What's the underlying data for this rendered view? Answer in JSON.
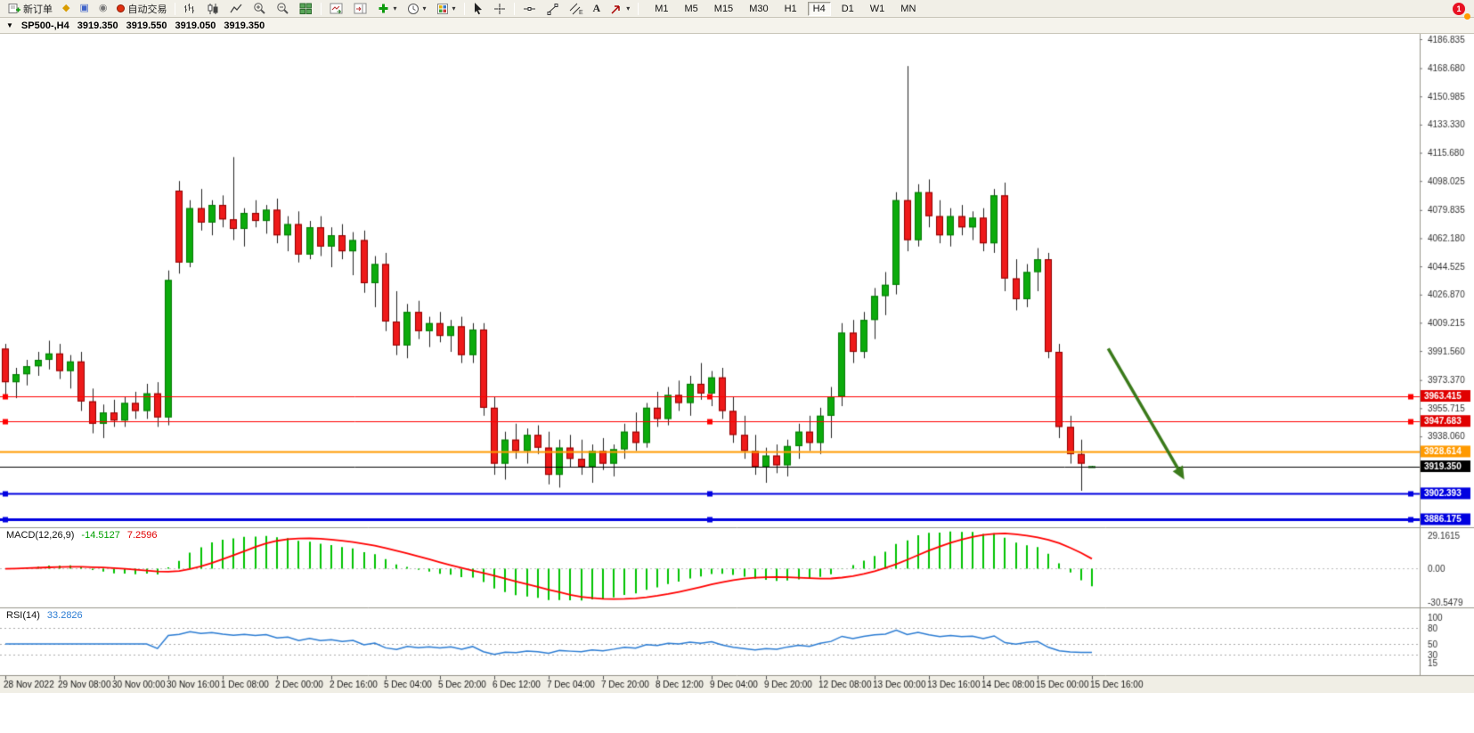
{
  "window": {
    "badge_count": "1"
  },
  "ui": {
    "dropdown_arrow": "▾",
    "symbol_dropdown": "▼",
    "icon_glyphs": {
      "new_chart": "◆",
      "profiles": "▣",
      "alerts": "◉",
      "text_tool": "A"
    }
  },
  "toolbar": {
    "new_order_label": "新订单",
    "auto_trading_label": "自动交易",
    "timeframes": [
      {
        "label": "M1",
        "active": false
      },
      {
        "label": "M5",
        "active": false
      },
      {
        "label": "M15",
        "active": false
      },
      {
        "label": "M30",
        "active": false
      },
      {
        "label": "H1",
        "active": false
      },
      {
        "label": "H4",
        "active": true
      },
      {
        "label": "D1",
        "active": false
      },
      {
        "label": "W1",
        "active": false
      },
      {
        "label": "MN",
        "active": false
      }
    ]
  },
  "quote_bar": {
    "symbol": "SP500-,H4"
  },
  "indicators": {
    "macd": {
      "title": "MACD(12,26,9)",
      "value1": "-14.5127",
      "value2": "7.2596"
    },
    "rsi": {
      "title": "RSI(14)",
      "value": "33.2826"
    }
  },
  "chart_data": {
    "type": "candlestick",
    "symbol": "SP500-",
    "timeframe": "H4",
    "ohlc_current": {
      "open": "3919.350",
      "high": "3919.550",
      "low": "3919.050",
      "close": "3919.350"
    },
    "price_axis_labels": [
      "4186.835",
      "4168.680",
      "4150.985",
      "4133.330",
      "4115.680",
      "4098.025",
      "4079.835",
      "4062.180",
      "4044.525",
      "4026.870",
      "4009.215",
      "3991.560",
      "3973.370",
      "3955.715",
      "3938.060"
    ],
    "time_labels": [
      "28 Nov 2022",
      "29 Nov 08:00",
      "30 Nov 00:00",
      "30 Nov 16:00",
      "1 Dec 08:00",
      "2 Dec 00:00",
      "2 Dec 16:00",
      "5 Dec 04:00",
      "5 Dec 20:00",
      "6 Dec 12:00",
      "7 Dec 04:00",
      "7 Dec 20:00",
      "8 Dec 12:00",
      "9 Dec 04:00",
      "9 Dec 20:00",
      "12 Dec 08:00",
      "13 Dec 00:00",
      "13 Dec 16:00",
      "14 Dec 08:00",
      "15 Dec 00:00",
      "15 Dec 16:00"
    ],
    "label_every": 5,
    "candles": [
      [
        3993,
        3996,
        3964,
        3972
      ],
      [
        3972,
        3981,
        3962,
        3977
      ],
      [
        3977,
        3986,
        3970,
        3982
      ],
      [
        3982,
        3991,
        3976,
        3986
      ],
      [
        3986,
        3998,
        3980,
        3990
      ],
      [
        3990,
        3996,
        3974,
        3979
      ],
      [
        3979,
        3989,
        3968,
        3985
      ],
      [
        3985,
        3991,
        3954,
        3960
      ],
      [
        3960,
        3968,
        3940,
        3946
      ],
      [
        3946,
        3958,
        3937,
        3953
      ],
      [
        3953,
        3961,
        3944,
        3948
      ],
      [
        3948,
        3963,
        3944,
        3959
      ],
      [
        3959,
        3966,
        3949,
        3954
      ],
      [
        3954,
        3971,
        3949,
        3965
      ],
      [
        3965,
        3972,
        3944,
        3950
      ],
      [
        3950,
        4042,
        3945,
        4036
      ],
      [
        4092,
        4098,
        4040,
        4047
      ],
      [
        4047,
        4086,
        4044,
        4081
      ],
      [
        4081,
        4093,
        4067,
        4072
      ],
      [
        4072,
        4086,
        4064,
        4083
      ],
      [
        4083,
        4089,
        4069,
        4074
      ],
      [
        4074,
        4113,
        4061,
        4068
      ],
      [
        4068,
        4081,
        4057,
        4078
      ],
      [
        4078,
        4086,
        4069,
        4073
      ],
      [
        4073,
        4083,
        4065,
        4080
      ],
      [
        4080,
        4087,
        4059,
        4064
      ],
      [
        4064,
        4076,
        4054,
        4071
      ],
      [
        4071,
        4079,
        4047,
        4052
      ],
      [
        4052,
        4073,
        4049,
        4069
      ],
      [
        4069,
        4076,
        4051,
        4057
      ],
      [
        4057,
        4069,
        4044,
        4064
      ],
      [
        4064,
        4071,
        4049,
        4054
      ],
      [
        4054,
        4066,
        4039,
        4061
      ],
      [
        4061,
        4067,
        4028,
        4034
      ],
      [
        4034,
        4051,
        4019,
        4046
      ],
      [
        4046,
        4053,
        4004,
        4010
      ],
      [
        4010,
        4029,
        3989,
        3995
      ],
      [
        3995,
        4021,
        3987,
        4016
      ],
      [
        4016,
        4023,
        3999,
        4004
      ],
      [
        4004,
        4013,
        3994,
        4009
      ],
      [
        4009,
        4016,
        3997,
        4001
      ],
      [
        4001,
        4011,
        3991,
        4007
      ],
      [
        4007,
        4013,
        3984,
        3989
      ],
      [
        3989,
        4009,
        3984,
        4005
      ],
      [
        4005,
        4009,
        3951,
        3956
      ],
      [
        3956,
        3963,
        3914,
        3921
      ],
      [
        3921,
        3941,
        3911,
        3936
      ],
      [
        3936,
        3946,
        3924,
        3929
      ],
      [
        3929,
        3943,
        3921,
        3939
      ],
      [
        3939,
        3945,
        3927,
        3931
      ],
      [
        3931,
        3941,
        3908,
        3914
      ],
      [
        3914,
        3936,
        3906,
        3931
      ],
      [
        3931,
        3939,
        3919,
        3924
      ],
      [
        3924,
        3936,
        3914,
        3919
      ],
      [
        3919,
        3933,
        3909,
        3929
      ],
      [
        3929,
        3937,
        3917,
        3921
      ],
      [
        3921,
        3933,
        3913,
        3930
      ],
      [
        3930,
        3946,
        3924,
        3941
      ],
      [
        3941,
        3953,
        3929,
        3934
      ],
      [
        3934,
        3959,
        3931,
        3956
      ],
      [
        3956,
        3966,
        3944,
        3949
      ],
      [
        3949,
        3969,
        3945,
        3964
      ],
      [
        3964,
        3973,
        3954,
        3959
      ],
      [
        3959,
        3976,
        3951,
        3971
      ],
      [
        3971,
        3984,
        3961,
        3965
      ],
      [
        3965,
        3979,
        3957,
        3975
      ],
      [
        3975,
        3981,
        3949,
        3954
      ],
      [
        3954,
        3963,
        3934,
        3939
      ],
      [
        3939,
        3951,
        3924,
        3929
      ],
      [
        3929,
        3939,
        3914,
        3919
      ],
      [
        3919,
        3931,
        3909,
        3926
      ],
      [
        3926,
        3933,
        3915,
        3920
      ],
      [
        3920,
        3936,
        3913,
        3932
      ],
      [
        3932,
        3946,
        3924,
        3941
      ],
      [
        3941,
        3951,
        3929,
        3934
      ],
      [
        3934,
        3956,
        3927,
        3951
      ],
      [
        3951,
        3969,
        3937,
        3963
      ],
      [
        3963,
        4009,
        3957,
        4003
      ],
      [
        4003,
        4011,
        3984,
        3991
      ],
      [
        3991,
        4016,
        3987,
        4011
      ],
      [
        4011,
        4031,
        3999,
        4026
      ],
      [
        4026,
        4041,
        4014,
        4033
      ],
      [
        4033,
        4091,
        4027,
        4086
      ],
      [
        4086,
        4170,
        4054,
        4061
      ],
      [
        4061,
        4096,
        4057,
        4091
      ],
      [
        4091,
        4099,
        4069,
        4076
      ],
      [
        4076,
        4086,
        4059,
        4064
      ],
      [
        4064,
        4081,
        4057,
        4076
      ],
      [
        4076,
        4083,
        4064,
        4069
      ],
      [
        4069,
        4079,
        4061,
        4075
      ],
      [
        4075,
        4081,
        4054,
        4059
      ],
      [
        4059,
        4093,
        4053,
        4089
      ],
      [
        4089,
        4097,
        4029,
        4037
      ],
      [
        4037,
        4049,
        4017,
        4024
      ],
      [
        4024,
        4046,
        4019,
        4041
      ],
      [
        4041,
        4056,
        4029,
        4049
      ],
      [
        4049,
        4053,
        3987,
        3991
      ],
      [
        3991,
        3996,
        3937,
        3944
      ],
      [
        3944,
        3951,
        3921,
        3927
      ],
      [
        3927,
        3936,
        3904,
        3921
      ],
      [
        3919.35,
        3919.55,
        3919.05,
        3919.35
      ]
    ],
    "hlines": [
      {
        "price": 3963.415,
        "label": "3963.415",
        "color": "#ff0000",
        "tag": "#e00000",
        "width": 1,
        "handles": true
      },
      {
        "price": 3947.683,
        "label": "3947.683",
        "color": "#ff0000",
        "tag": "#e00000",
        "width": 1,
        "handles": true
      },
      {
        "price": 3928.614,
        "label": "3928.614",
        "color": "#ff9a00",
        "tag": "#ff9a00",
        "width": 2,
        "handles": false
      },
      {
        "price": 3919.35,
        "label": "3919.350",
        "color": "#000000",
        "tag": "#000000",
        "width": 1,
        "handles": false
      },
      {
        "price": 3902.393,
        "label": "3902.393",
        "color": "#0000e0",
        "tag": "#0000e0",
        "width": 2,
        "handles": true
      },
      {
        "price": 3886.175,
        "label": "3886.175",
        "color": "#0000e0",
        "tag": "#0000e0",
        "width": 3,
        "handles": true
      }
    ],
    "arrow": {
      "from_bar": 101.5,
      "from_price": 3993,
      "to_bar": 108.5,
      "to_price": 3911,
      "color": "#3a7a1a"
    },
    "macd_axis": [
      "29.1615",
      "0.00",
      "-30.5479"
    ],
    "rsi_axis": [
      "100",
      "80",
      "50",
      "30",
      "15"
    ],
    "rsi_levels": [
      80,
      50,
      30
    ],
    "colors": {
      "up": "#0cab0c",
      "down": "#ee1a1a",
      "up_border": "#067a06",
      "down_border": "#8f0000",
      "wick": "#222222",
      "macd_bar": "#00c300",
      "macd_signal": "#ff0000",
      "rsi_line": "#2b7cd3"
    }
  }
}
